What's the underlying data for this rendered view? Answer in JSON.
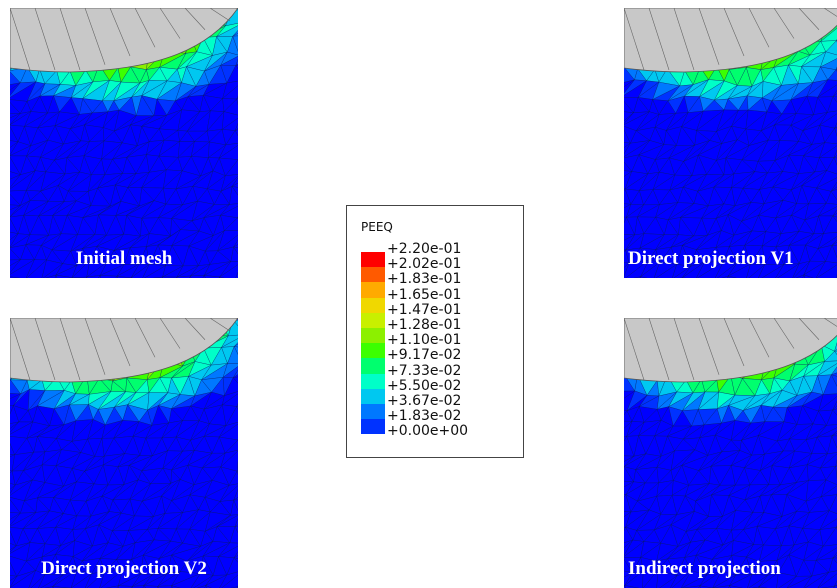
{
  "panels": [
    {
      "id": "panel-tl",
      "caption": "Initial mesh"
    },
    {
      "id": "panel-tr",
      "caption": "Direct projection V1"
    },
    {
      "id": "panel-bl",
      "caption": "Direct projection V2"
    },
    {
      "id": "panel-br",
      "caption": "Indirect projection"
    }
  ],
  "legend": {
    "title": "PEEQ",
    "labels": [
      "+2.20e-01",
      "+2.02e-01",
      "+1.83e-01",
      "+1.65e-01",
      "+1.47e-01",
      "+1.28e-01",
      "+1.10e-01",
      "+9.17e-02",
      "+7.33e-02",
      "+5.50e-02",
      "+3.67e-02",
      "+1.83e-02",
      "+0.00e+00"
    ],
    "colors": [
      "#ff0000",
      "#ff5a00",
      "#ffaa00",
      "#f0d800",
      "#c8f000",
      "#8cf000",
      "#3cff00",
      "#00ff6e",
      "#00ffc8",
      "#00c8f0",
      "#0078ff",
      "#0032ff",
      "#0000ff"
    ]
  }
}
